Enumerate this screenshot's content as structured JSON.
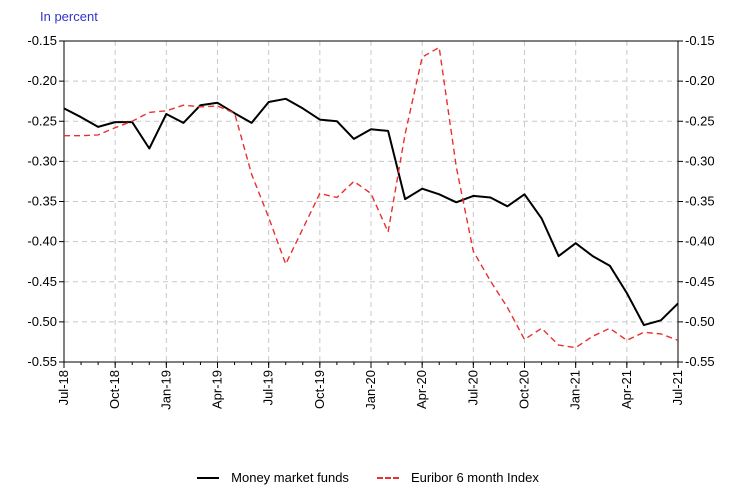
{
  "chart_data": {
    "type": "line",
    "unit_label": "In percent",
    "x": [
      "Jul-18",
      "Aug-18",
      "Sep-18",
      "Oct-18",
      "Nov-18",
      "Dec-18",
      "Jan-19",
      "Feb-19",
      "Mar-19",
      "Apr-19",
      "May-19",
      "Jun-19",
      "Jul-19",
      "Aug-19",
      "Sep-19",
      "Oct-19",
      "Nov-19",
      "Dec-19",
      "Jan-20",
      "Feb-20",
      "Mar-20",
      "Apr-20",
      "May-20",
      "Jun-20",
      "Jul-20",
      "Aug-20",
      "Sep-20",
      "Oct-20",
      "Nov-20",
      "Dec-20",
      "Jan-21",
      "Feb-21",
      "Mar-21",
      "Apr-21",
      "May-21",
      "Jun-21",
      "Jul-21"
    ],
    "x_tick_labels": [
      "Jul-18",
      "Oct-18",
      "Jan-19",
      "Apr-19",
      "Jul-19",
      "Oct-19",
      "Jan-20",
      "Apr-20",
      "Jul-20",
      "Oct-20",
      "Jan-21",
      "Apr-21",
      "Jul-21"
    ],
    "ylim": [
      -0.55,
      -0.15
    ],
    "y_ticks": [
      "-0.15",
      "-0.20",
      "-0.25",
      "-0.30",
      "-0.35",
      "-0.40",
      "-0.45",
      "-0.50",
      "-0.55"
    ],
    "grid": true,
    "legend_position": "bottom-center",
    "series": [
      {
        "name": "Money market funds",
        "color": "#000000",
        "style": "solid",
        "values": [
          -0.234,
          -0.245,
          -0.257,
          -0.251,
          -0.251,
          -0.284,
          -0.241,
          -0.252,
          -0.23,
          -0.227,
          -0.24,
          -0.252,
          -0.226,
          -0.222,
          -0.234,
          -0.248,
          -0.25,
          -0.272,
          -0.26,
          -0.262,
          -0.347,
          -0.334,
          -0.341,
          -0.351,
          -0.343,
          -0.345,
          -0.356,
          -0.341,
          -0.371,
          -0.418,
          -0.402,
          -0.418,
          -0.43,
          -0.464,
          -0.504,
          -0.498,
          -0.477
        ]
      },
      {
        "name": "Euribor 6 month Index",
        "color": "#e8312f",
        "style": "dashed",
        "values": [
          -0.268,
          -0.268,
          -0.267,
          -0.258,
          -0.25,
          -0.239,
          -0.237,
          -0.23,
          -0.232,
          -0.231,
          -0.24,
          -0.316,
          -0.37,
          -0.428,
          -0.384,
          -0.34,
          -0.345,
          -0.325,
          -0.34,
          -0.388,
          -0.266,
          -0.17,
          -0.158,
          -0.307,
          -0.412,
          -0.449,
          -0.482,
          -0.522,
          -0.508,
          -0.529,
          -0.532,
          -0.518,
          -0.508,
          -0.523,
          -0.513,
          -0.515,
          -0.523
        ]
      }
    ]
  }
}
